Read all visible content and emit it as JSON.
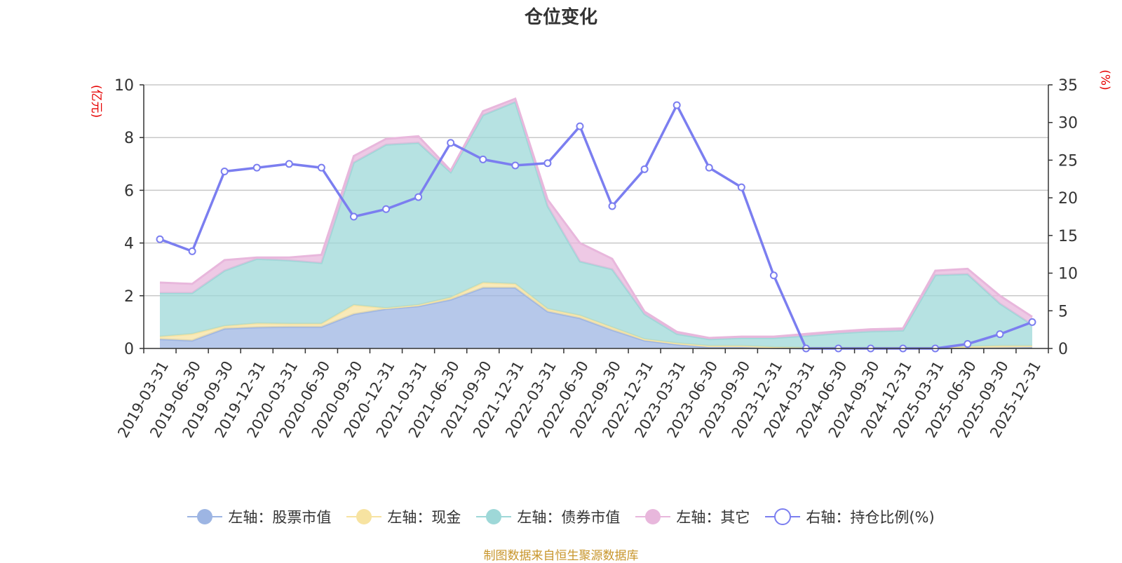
{
  "title": "仓位变化",
  "left_unit": "(亿元)",
  "right_unit": "(%)",
  "source": "制图数据来自恒生聚源数据库",
  "colors": {
    "stock": "#9db5e3",
    "cash": "#f7e3a1",
    "bond": "#9ed8d8",
    "other": "#e8b7dc",
    "ratio": "#7b7ef0",
    "axis": "#333333",
    "grid": "#c8c8c8"
  },
  "legend": [
    {
      "key": "stock",
      "label": "左轴：股票市值",
      "type": "area"
    },
    {
      "key": "cash",
      "label": "左轴：现金",
      "type": "area"
    },
    {
      "key": "bond",
      "label": "左轴：债券市值",
      "type": "area"
    },
    {
      "key": "other",
      "label": "左轴：其它",
      "type": "area"
    },
    {
      "key": "ratio",
      "label": "右轴：持仓比例(%)",
      "type": "line"
    }
  ],
  "chart_data": {
    "type": "area",
    "title": "仓位变化",
    "categories": [
      "2019-03-31",
      "2019-06-30",
      "2019-09-30",
      "2019-12-31",
      "2020-03-31",
      "2020-06-30",
      "2020-09-30",
      "2020-12-31",
      "2021-03-31",
      "2021-06-30",
      "2021-09-30",
      "2021-12-31",
      "2022-03-31",
      "2022-06-30",
      "2022-09-30",
      "2022-12-31",
      "2023-03-31",
      "2023-06-30",
      "2023-09-30",
      "2023-12-31",
      "2024-03-31",
      "2024-06-30",
      "2024-09-30",
      "2024-12-31",
      "2025-03-31",
      "2025-06-30",
      "2025-09-30",
      "2025-12-31"
    ],
    "stacked": true,
    "left_axis": {
      "label": "(亿元)",
      "ylim": [
        0,
        10
      ],
      "ticks": [
        0,
        2,
        4,
        6,
        8,
        10
      ]
    },
    "right_axis": {
      "label": "(%)",
      "ylim": [
        0,
        35
      ],
      "ticks": [
        0,
        5,
        10,
        15,
        20,
        25,
        30,
        35
      ]
    },
    "series": [
      {
        "name": "左轴：股票市值",
        "axis": "left",
        "values": [
          0.35,
          0.3,
          0.75,
          0.8,
          0.82,
          0.82,
          1.3,
          1.5,
          1.6,
          1.85,
          2.3,
          2.3,
          1.4,
          1.15,
          0.7,
          0.3,
          0.15,
          0.05,
          0.05,
          0.02,
          0.0,
          0.0,
          0.0,
          0.0,
          0.0,
          0.02,
          0.03,
          0.05
        ]
      },
      {
        "name": "左轴：现金",
        "axis": "left",
        "values": [
          0.1,
          0.25,
          0.1,
          0.15,
          0.12,
          0.12,
          0.35,
          0.03,
          0.05,
          0.08,
          0.2,
          0.15,
          0.1,
          0.1,
          0.1,
          0.05,
          0.05,
          0.05,
          0.05,
          0.03,
          0.03,
          0.03,
          0.03,
          0.03,
          0.03,
          0.05,
          0.07,
          0.05
        ]
      },
      {
        "name": "左轴：债券市值",
        "axis": "left",
        "values": [
          1.65,
          1.55,
          2.1,
          2.45,
          2.4,
          2.3,
          5.4,
          6.2,
          6.15,
          4.75,
          6.35,
          6.9,
          3.9,
          2.05,
          2.2,
          0.95,
          0.35,
          0.25,
          0.3,
          0.35,
          0.45,
          0.55,
          0.62,
          0.65,
          2.75,
          2.75,
          1.6,
          0.8
        ]
      },
      {
        "name": "左轴：其它",
        "axis": "left",
        "values": [
          0.4,
          0.35,
          0.4,
          0.05,
          0.11,
          0.31,
          0.25,
          0.22,
          0.25,
          0.07,
          0.15,
          0.12,
          0.25,
          0.7,
          0.4,
          0.1,
          0.08,
          0.05,
          0.05,
          0.05,
          0.07,
          0.07,
          0.08,
          0.08,
          0.17,
          0.2,
          0.3,
          0.3
        ]
      },
      {
        "name": "右轴：持仓比例(%)",
        "axis": "right",
        "values": [
          14.5,
          12.9,
          23.5,
          24.0,
          24.5,
          24.0,
          17.5,
          18.5,
          20.1,
          27.3,
          25.1,
          24.3,
          24.6,
          29.5,
          18.9,
          23.8,
          32.3,
          24.0,
          21.4,
          9.7,
          0.0,
          0.0,
          0.0,
          0.0,
          0.0,
          0.6,
          1.9,
          3.5
        ]
      }
    ]
  }
}
